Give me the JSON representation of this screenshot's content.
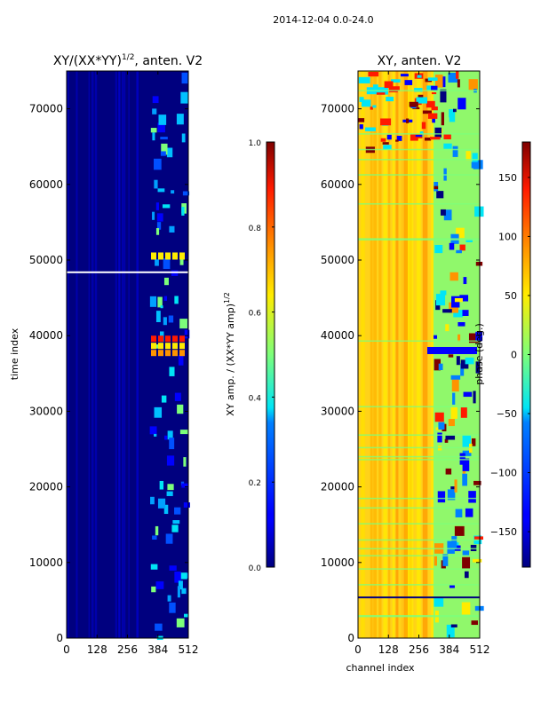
{
  "figure": {
    "suptitle": "2014-12-04 0.0-24.0"
  },
  "chart_data": [
    {
      "type": "heatmap",
      "title_text": "XY/(XX*YY)",
      "title_exp": "1/2",
      "title_suffix": ", anten. V2",
      "xlabel": "",
      "ylabel": "time index",
      "x_ticks": [
        0,
        128,
        256,
        384,
        512
      ],
      "y_ticks": [
        0,
        10000,
        20000,
        30000,
        40000,
        50000,
        60000,
        70000
      ],
      "xlim": [
        0,
        512
      ],
      "ylim": [
        0,
        75000
      ],
      "colorbar": {
        "label_text": "XY amp. / (XX*YY amp)",
        "label_exp": "1/2",
        "ticks": [
          "0.0",
          "0.2",
          "0.4",
          "0.6",
          "0.8",
          "1.0"
        ],
        "tick_values": [
          0.0,
          0.2,
          0.4,
          0.6,
          0.8,
          1.0
        ],
        "range": [
          0.0,
          1.0
        ]
      }
    },
    {
      "type": "heatmap",
      "title_text": "XY, anten. V2",
      "xlabel": "channel index",
      "ylabel": "",
      "x_ticks": [
        0,
        128,
        256,
        384,
        512
      ],
      "y_ticks": [
        0,
        10000,
        20000,
        30000,
        40000,
        50000,
        60000,
        70000
      ],
      "xlim": [
        0,
        512
      ],
      "ylim": [
        0,
        75000
      ],
      "colorbar": {
        "label_text": "phase (deg.)",
        "ticks": [
          "−150",
          "−100",
          "−50",
          "0",
          "50",
          "100",
          "150"
        ],
        "tick_values": [
          -150,
          -100,
          -50,
          0,
          50,
          100,
          150
        ],
        "range": [
          -180,
          180
        ]
      }
    }
  ],
  "colors": {
    "axis": "#000000",
    "background": "#ffffff",
    "jet_low": "#00007f",
    "jet_high": "#7f0000"
  }
}
